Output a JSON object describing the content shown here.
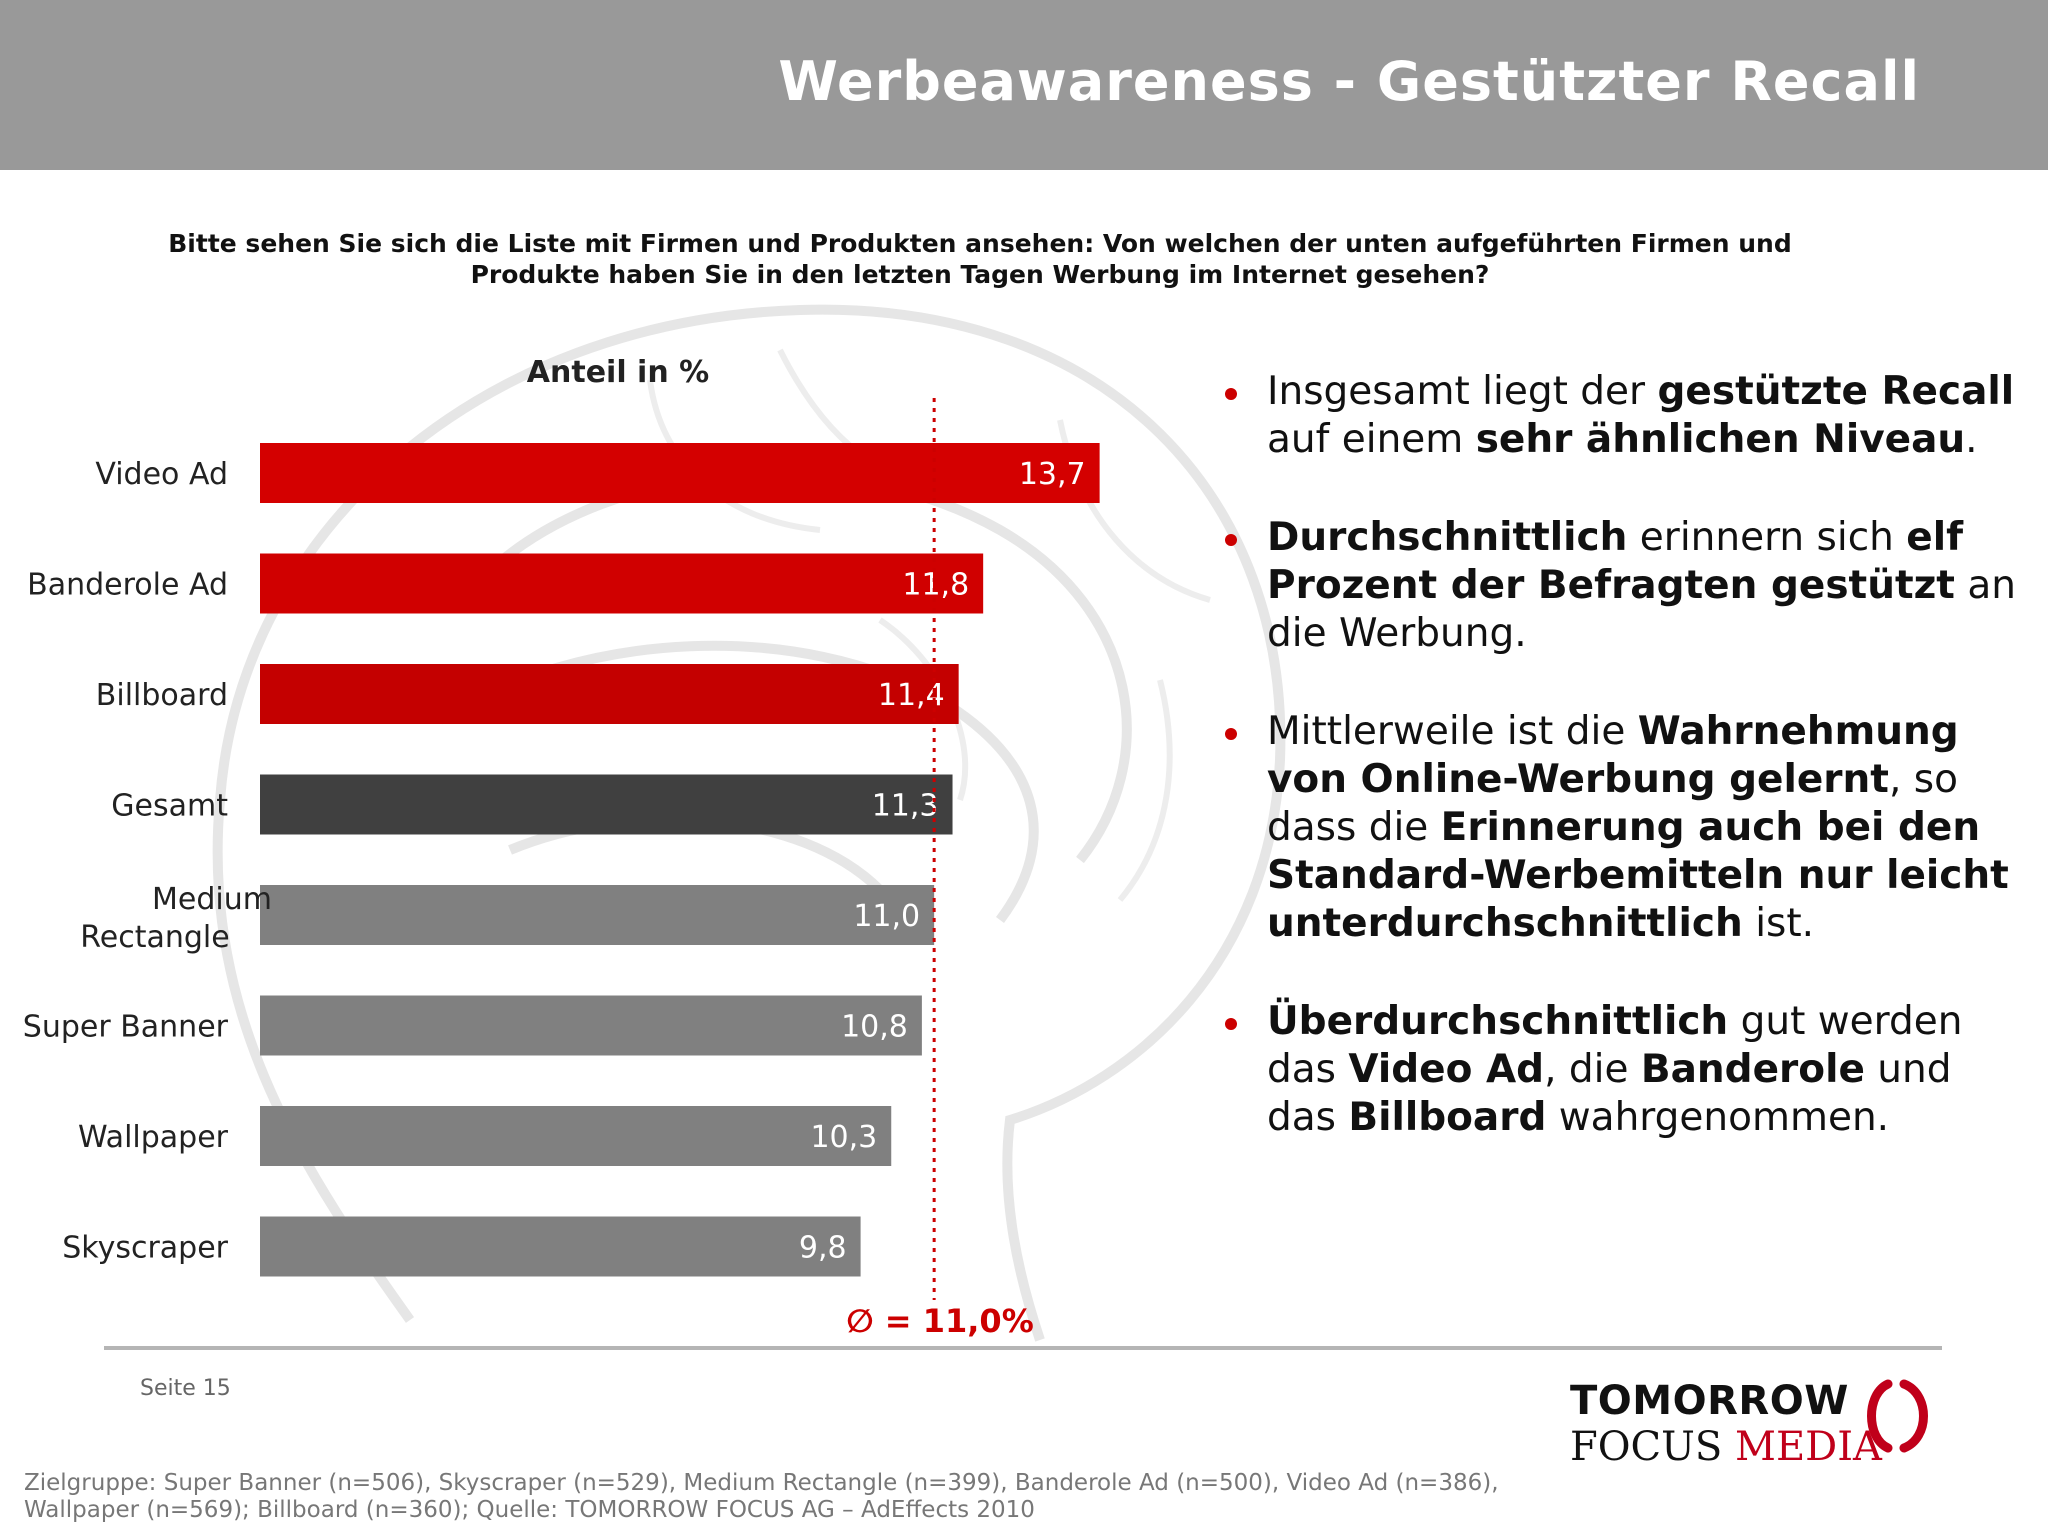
{
  "header": {
    "title": "Werbeawareness - Gestützter Recall"
  },
  "question": "Bitte sehen Sie sich die Liste mit Firmen und Produkten ansehen: Von welchen der unten aufgeführten Firmen und Produkte haben Sie in den letzten Tagen Werbung im Internet gesehen?",
  "chart_data": {
    "type": "bar",
    "orientation": "horizontal",
    "title": "Anteil in %",
    "categories": [
      "Video Ad",
      "Banderole Ad",
      "Billboard",
      "Gesamt",
      "Medium Rectangle",
      "Super Banner",
      "Wallpaper",
      "Skyscraper"
    ],
    "values": [
      13.7,
      11.8,
      11.4,
      11.3,
      11.0,
      10.8,
      10.3,
      9.8
    ],
    "value_labels": [
      "13,7",
      "11,8",
      "11,4",
      "11,3",
      "11,0",
      "10,8",
      "10,3",
      "9,8"
    ],
    "bar_colors": [
      "#d40000",
      "#d00000",
      "#c40000",
      "#404040",
      "#808080",
      "#808080",
      "#808080",
      "#808080"
    ],
    "reference_line": {
      "value": 11.0,
      "label": "∅ = 11,0%",
      "color": "#cc0000"
    },
    "xlim": [
      0,
      14
    ],
    "grid": false,
    "legend": "none"
  },
  "bullets": [
    [
      {
        "t": "Insgesamt liegt der "
      },
      {
        "t": "gestützte Recall",
        "b": true
      },
      {
        "t": " auf einem "
      },
      {
        "t": "sehr ähnlichen Niveau",
        "b": true
      },
      {
        "t": "."
      }
    ],
    [
      {
        "t": "Durchschnittlich",
        "b": true
      },
      {
        "t": " erinnern sich "
      },
      {
        "t": "elf Prozent der Befragten gestützt",
        "b": true
      },
      {
        "t": " an die Werbung."
      }
    ],
    [
      {
        "t": "Mittlerweile ist die "
      },
      {
        "t": "Wahrnehmung von Online-Werbung gelernt",
        "b": true
      },
      {
        "t": ", so dass die "
      },
      {
        "t": "Erinnerung auch bei den Standard-Werbemitteln nur leicht unterdurchschnittlich",
        "b": true
      },
      {
        "t": " ist."
      }
    ],
    [
      {
        "t": "Überdurchschnittlich",
        "b": true
      },
      {
        "t": " gut werden das "
      },
      {
        "t": "Video Ad",
        "b": true
      },
      {
        "t": ", die "
      },
      {
        "t": "Banderole",
        "b": true
      },
      {
        "t": " und das "
      },
      {
        "t": "Billboard",
        "b": true
      },
      {
        "t": " wahrgenommen."
      }
    ]
  ],
  "footer": {
    "page": "Seite 15",
    "logo_line1": "TOMORROW",
    "logo_line2_a": "FOCUS",
    "logo_line2_b": "MEDIA",
    "source_line1": "Zielgruppe: Super Banner (n=506), Skyscraper (n=529), Medium Rectangle (n=399), Banderole Ad (n=500), Video Ad (n=386),",
    "source_line2": "Wallpaper (n=569); Billboard (n=360); Quelle: TOMORROW FOCUS AG – AdEffects 2010"
  },
  "colors": {
    "header_bg": "#999999",
    "accent": "#cc0000"
  }
}
